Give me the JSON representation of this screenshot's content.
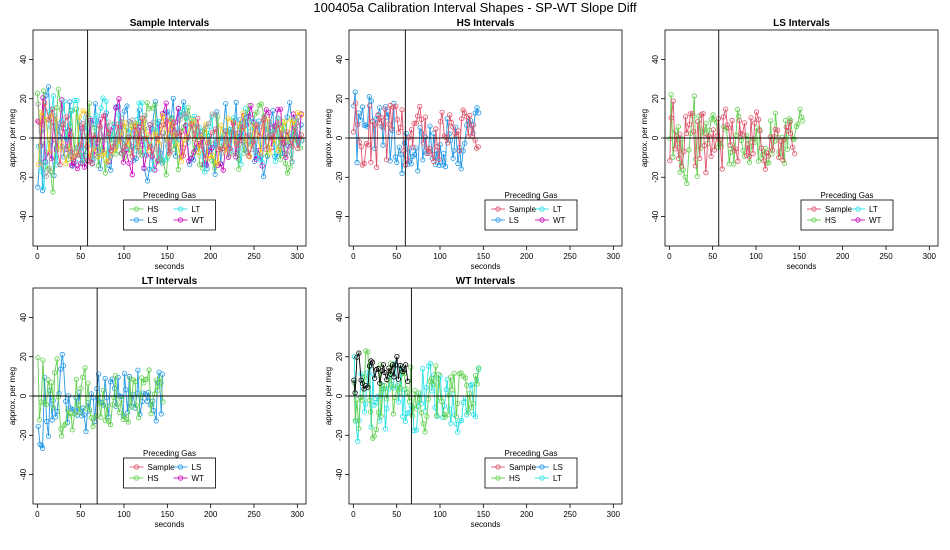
{
  "title": "100405a   Calibration Interval Shapes - SP-WT Slope Diff",
  "colors": {
    "Sample": "#DF536B",
    "HS": "#61D04F",
    "LS": "#2297E6",
    "LT": "#28E2E5",
    "WT": "#CD0BBC",
    "extra1": "#F5C710",
    "extra2": "#9E9E9E",
    "extra3": "#000000"
  },
  "chart_data": [
    {
      "type": "line",
      "title": "Sample Intervals",
      "xlabel": "seconds",
      "ylabel": "approx. per meg",
      "xlim": [
        -5,
        310
      ],
      "ylim": [
        -55,
        55
      ],
      "xticks": [
        0,
        50,
        100,
        150,
        200,
        250,
        300
      ],
      "yticks": [
        -40,
        -20,
        0,
        20,
        40
      ],
      "vline": 58,
      "hline": 0,
      "legend": {
        "title": "Preceding Gas",
        "position": "bottom-center",
        "entries": [
          "HS",
          "LT",
          "LS",
          "WT"
        ]
      },
      "series": [
        {
          "name": "LS",
          "color": "#2297E6",
          "start": 0,
          "end": 305,
          "step": 3,
          "amp": 24,
          "seed": 11
        },
        {
          "name": "HS",
          "color": "#61D04F",
          "start": 0,
          "end": 305,
          "step": 3,
          "amp": 22,
          "seed": 12
        },
        {
          "name": "WT",
          "color": "#CD0BBC",
          "start": 0,
          "end": 305,
          "step": 3,
          "amp": 20,
          "seed": 13
        },
        {
          "name": "LT",
          "color": "#28E2E5",
          "start": 0,
          "end": 305,
          "step": 3,
          "amp": 20,
          "seed": 14
        },
        {
          "name": "extra",
          "color": "#F5C710",
          "start": 0,
          "end": 305,
          "step": 4,
          "amp": 16,
          "seed": 15
        },
        {
          "name": "extra",
          "color": "#9E9E9E",
          "start": 0,
          "end": 305,
          "step": 4,
          "amp": 14,
          "seed": 16
        },
        {
          "name": "extra",
          "color": "#DF536B",
          "start": 0,
          "end": 305,
          "step": 4,
          "amp": 14,
          "seed": 17
        }
      ]
    },
    {
      "type": "line",
      "title": "HS Intervals",
      "xlabel": "seconds",
      "ylabel": "approx. per meg",
      "xlim": [
        -5,
        310
      ],
      "ylim": [
        -55,
        55
      ],
      "xticks": [
        0,
        50,
        100,
        150,
        200,
        250,
        300
      ],
      "yticks": [
        -40,
        -20,
        0,
        20,
        40
      ],
      "vline": 60,
      "hline": 0,
      "legend": {
        "title": "Preceding Gas",
        "position": "bottom-right",
        "entries": [
          "Sample",
          "LT",
          "LS",
          "WT"
        ]
      },
      "series": [
        {
          "name": "LS",
          "color": "#2297E6",
          "start": 0,
          "end": 145,
          "step": 2,
          "amp": 20,
          "seed": 21
        },
        {
          "name": "Sample",
          "color": "#DF536B",
          "start": 0,
          "end": 145,
          "step": 2,
          "amp": 16,
          "seed": 22
        }
      ]
    },
    {
      "type": "line",
      "title": "LS Intervals",
      "xlabel": "seconds",
      "ylabel": "approx. per meg",
      "xlim": [
        -5,
        310
      ],
      "ylim": [
        -55,
        55
      ],
      "xticks": [
        0,
        50,
        100,
        150,
        200,
        250,
        300
      ],
      "yticks": [
        -40,
        -20,
        0,
        20,
        40
      ],
      "vline": 57,
      "hline": 0,
      "legend": {
        "title": "Preceding Gas",
        "position": "bottom-right",
        "entries": [
          "Sample",
          "LT",
          "HS",
          "WT"
        ]
      },
      "series": [
        {
          "name": "HS",
          "color": "#61D04F",
          "start": 0,
          "end": 155,
          "step": 2,
          "amp": 18,
          "seed": 31
        },
        {
          "name": "Sample",
          "color": "#DF536B",
          "start": 0,
          "end": 145,
          "step": 2,
          "amp": 18,
          "seed": 32
        }
      ]
    },
    {
      "type": "line",
      "title": "LT Intervals",
      "xlabel": "seconds",
      "ylabel": "approx. per meg",
      "xlim": [
        -5,
        310
      ],
      "ylim": [
        -55,
        55
      ],
      "xticks": [
        0,
        50,
        100,
        150,
        200,
        250,
        300
      ],
      "yticks": [
        -40,
        -20,
        0,
        20,
        40
      ],
      "vline": 69,
      "hline": 0,
      "legend": {
        "title": "Preceding Gas",
        "position": "bottom-center",
        "entries": [
          "Sample",
          "LS",
          "HS",
          "WT"
        ]
      },
      "series": [
        {
          "name": "LS",
          "color": "#2297E6",
          "start": 0,
          "end": 145,
          "step": 2,
          "amp": 18,
          "seed": 41
        },
        {
          "name": "HS",
          "color": "#61D04F",
          "start": 0,
          "end": 145,
          "step": 2,
          "amp": 16,
          "seed": 42
        }
      ]
    },
    {
      "type": "line",
      "title": "WT Intervals",
      "xlabel": "seconds",
      "ylabel": "approx. per meg",
      "xlim": [
        -5,
        310
      ],
      "ylim": [
        -55,
        55
      ],
      "xticks": [
        0,
        50,
        100,
        150,
        200,
        250,
        300
      ],
      "yticks": [
        -40,
        -20,
        0,
        20,
        40
      ],
      "vline": 67,
      "hline": 0,
      "legend": {
        "title": "Preceding Gas",
        "position": "bottom-right",
        "entries": [
          "Sample",
          "LS",
          "HS",
          "LT"
        ]
      },
      "series": [
        {
          "name": "LT",
          "color": "#28E2E5",
          "start": 0,
          "end": 145,
          "step": 2,
          "amp": 20,
          "seed": 51
        },
        {
          "name": "HS",
          "color": "#61D04F",
          "start": 0,
          "end": 145,
          "step": 2,
          "amp": 18,
          "seed": 52
        },
        {
          "name": "extra",
          "color": "#000000",
          "start": 0,
          "end": 62,
          "step": 2,
          "amp": 8,
          "offset": 10,
          "seed": 53
        }
      ]
    }
  ]
}
